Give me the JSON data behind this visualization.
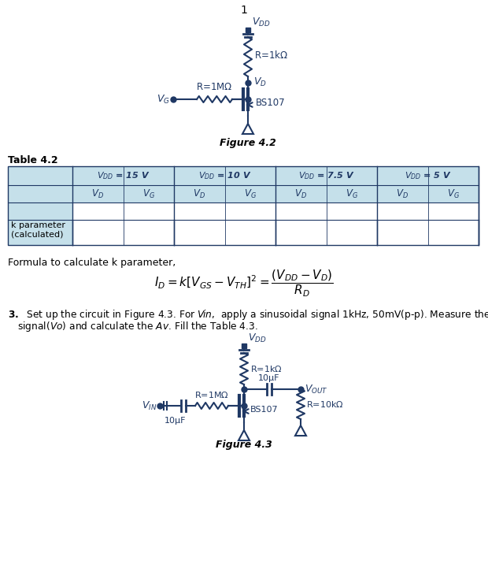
{
  "page_number": "1",
  "fig2_caption": "Figure 4.2",
  "fig3_caption": "Figure 4.3",
  "table_title": "Table 4.2",
  "formula_prefix": "Formula to calculate k parameter,",
  "dark_blue": "#1F3864",
  "light_blue_bg": "#C5E0EA",
  "background_color": "#ffffff",
  "table_header_cols": [
    "V_DD = 15 V",
    "V_DD = 10 V",
    "V_DD = 7.5 V",
    "V_DD = 5 V"
  ]
}
